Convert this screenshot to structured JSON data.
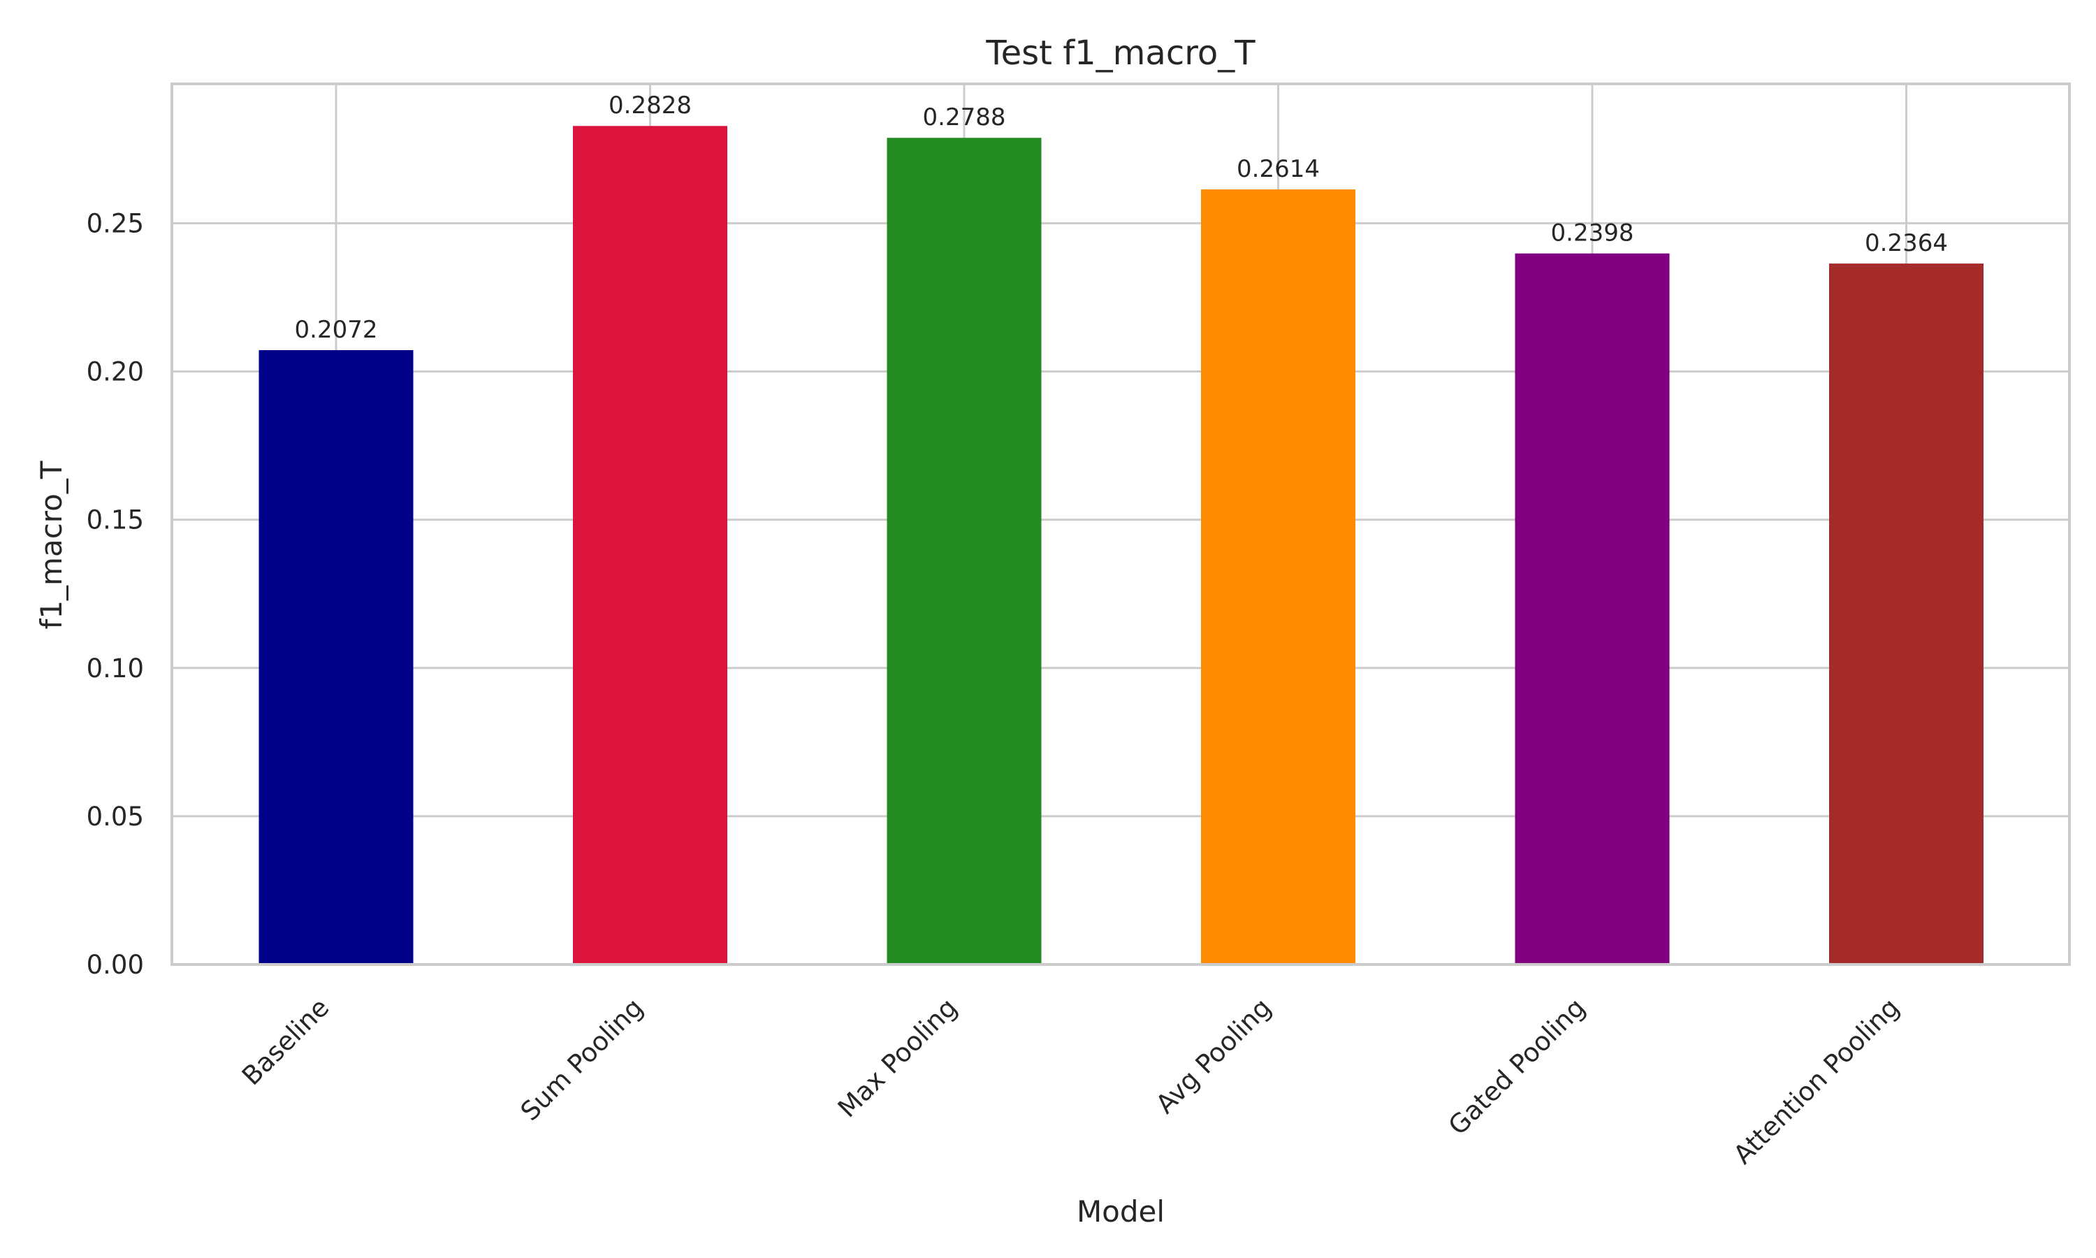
{
  "chart_data": {
    "type": "bar",
    "title": "Test f1_macro_T",
    "xlabel": "Model",
    "ylabel": "f1_macro_T",
    "categories": [
      "Baseline",
      "Sum Pooling",
      "Max Pooling",
      "Avg Pooling",
      "Gated Pooling",
      "Attention Pooling"
    ],
    "values": [
      0.2072,
      0.2828,
      0.2788,
      0.2614,
      0.2398,
      0.2364
    ],
    "value_labels": [
      "0.2072",
      "0.2828",
      "0.2788",
      "0.2614",
      "0.2398",
      "0.2364"
    ],
    "colors": [
      "#000088",
      "#dc143c",
      "#228b22",
      "#ff8c00",
      "#800080",
      "#a52a2a"
    ],
    "yticks": [
      0.0,
      0.05,
      0.1,
      0.15,
      0.2,
      0.25
    ],
    "ytick_labels": [
      "0.00",
      "0.05",
      "0.10",
      "0.15",
      "0.20",
      "0.25"
    ],
    "ylim": [
      0,
      0.297
    ],
    "grid": true,
    "legend": false
  }
}
